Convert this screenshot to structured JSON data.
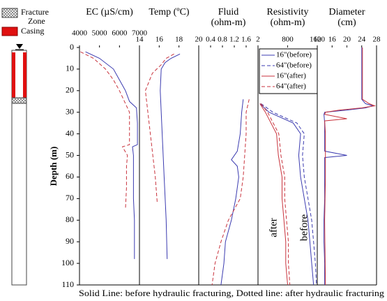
{
  "well_legend": {
    "fracture_zone": [
      "Fracture",
      "Zone"
    ],
    "casing": "Casing"
  },
  "depth_axis": {
    "label": "Depth (m)",
    "ylim": [
      0,
      110
    ],
    "yticks": [
      0,
      10,
      20,
      30,
      40,
      50,
      60,
      70,
      80,
      90,
      100,
      110
    ]
  },
  "footer": "Solid Line: before hydraulic fracturing, Dotted line: after hydraulic fracturing",
  "annotations": [
    "after",
    "before"
  ],
  "chart_data": [
    {
      "type": "line",
      "title": [
        "EC (µS/cm)"
      ],
      "xlim": [
        4000,
        7000
      ],
      "xticks": [
        4000,
        5000,
        6000,
        7000
      ],
      "series": [
        {
          "color": "#3b3bb0",
          "dash": false,
          "depth": [
            2,
            5,
            10,
            15,
            20,
            25,
            28,
            35,
            45,
            46,
            50,
            60,
            70,
            80,
            90,
            98
          ],
          "values": [
            4300,
            5000,
            5700,
            6000,
            6300,
            6500,
            6850,
            6900,
            6900,
            6650,
            6700,
            6700,
            6700,
            6750,
            6750,
            6750
          ]
        },
        {
          "color": "#c8323c",
          "dash": true,
          "depth": [
            2,
            5,
            10,
            15,
            20,
            25,
            30,
            45,
            46,
            50,
            55,
            65,
            75
          ],
          "values": [
            4050,
            4700,
            5300,
            5700,
            6000,
            6250,
            6500,
            6500,
            6150,
            6400,
            6350,
            6350,
            6300
          ]
        }
      ]
    },
    {
      "type": "line",
      "title": [
        "Temp (ºC)"
      ],
      "xlim": [
        14,
        20
      ],
      "xticks": [
        14,
        16,
        18,
        20
      ],
      "series": [
        {
          "color": "#3b3bb0",
          "dash": false,
          "depth": [
            3,
            5,
            7,
            10,
            20,
            40,
            60,
            80,
            98
          ],
          "values": [
            18.1,
            17.2,
            16.6,
            16.2,
            16.1,
            16.3,
            16.5,
            16.7,
            16.8
          ]
        },
        {
          "color": "#c8323c",
          "dash": true,
          "depth": [
            3,
            5,
            8,
            12,
            20,
            40,
            60,
            72
          ],
          "values": [
            17.5,
            16.7,
            16.2,
            15.3,
            14.6,
            15.1,
            15.6,
            15.8
          ]
        }
      ]
    },
    {
      "type": "line",
      "title": [
        "Fluid",
        "(ohm-m)"
      ],
      "xlim": [
        0,
        2
      ],
      "xticks": [
        0.4,
        0.8,
        1.2,
        1.6,
        2
      ],
      "series": [
        {
          "color": "#3b3bb0",
          "dash": false,
          "depth": [
            24,
            30,
            40,
            48,
            52,
            55,
            60,
            70,
            80,
            90,
            100,
            110
          ],
          "values": [
            1.5,
            1.45,
            1.4,
            1.3,
            1.1,
            1.3,
            1.35,
            1.25,
            1.1,
            0.9,
            0.85,
            0.75
          ]
        },
        {
          "color": "#c8323c",
          "dash": true,
          "depth": [
            24,
            30,
            40,
            50,
            60,
            70,
            80,
            90,
            100,
            110
          ],
          "values": [
            1.7,
            1.6,
            1.6,
            1.55,
            1.5,
            1.4,
            1.0,
            0.75,
            0.55,
            0.45
          ]
        }
      ]
    },
    {
      "type": "line",
      "title": [
        "Resistivity",
        "(ohm-m)"
      ],
      "xlim": [
        0,
        1600
      ],
      "xticks": [
        800,
        1600
      ],
      "legend": "upper right",
      "series": [
        {
          "name": "16\"(before)",
          "color": "#3b3bb0",
          "dash": false,
          "depth": [
            26,
            30,
            35,
            40,
            50,
            60,
            70,
            80,
            90,
            100,
            110
          ],
          "values": [
            50,
            300,
            950,
            1150,
            1100,
            1150,
            1250,
            1350,
            1400,
            1450,
            1500
          ]
        },
        {
          "name": "64\"(before)",
          "color": "#3b3bb0",
          "dash": true,
          "depth": [
            26,
            30,
            35,
            40,
            50,
            60,
            70,
            80,
            90,
            100,
            110
          ],
          "values": [
            80,
            400,
            1050,
            1250,
            1200,
            1250,
            1350,
            1450,
            1500,
            1550,
            1580
          ]
        },
        {
          "name": "16\"(after)",
          "color": "#c8323c",
          "dash": false,
          "depth": [
            26,
            30,
            40,
            50,
            60,
            70,
            80,
            90,
            100,
            110
          ],
          "values": [
            50,
            200,
            500,
            550,
            650,
            650,
            700,
            750,
            750,
            800
          ]
        },
        {
          "name": "64\"(after)",
          "color": "#c8323c",
          "dash": true,
          "depth": [
            26,
            30,
            40,
            50,
            60,
            70,
            80,
            90,
            100,
            110
          ],
          "values": [
            80,
            260,
            560,
            620,
            720,
            720,
            770,
            820,
            820,
            860
          ]
        }
      ]
    },
    {
      "type": "line",
      "title": [
        "Diameter",
        "(cm)"
      ],
      "xlim": [
        12,
        28
      ],
      "xticks": [
        12,
        16,
        20,
        24,
        28
      ],
      "series": [
        {
          "color": "#3b3bb0",
          "dash": false,
          "depth": [
            0,
            5,
            10,
            15,
            20,
            24,
            26,
            27,
            28,
            29,
            30,
            31,
            35,
            40,
            48,
            50,
            51,
            60,
            70,
            80,
            90,
            100,
            110
          ],
          "values": [
            24,
            24,
            24,
            24,
            24,
            24,
            25,
            27,
            25,
            20,
            14,
            13.8,
            14,
            14,
            14,
            20,
            14,
            14,
            14,
            13.8,
            13.8,
            14,
            14
          ]
        },
        {
          "color": "#c8323c",
          "dash": false,
          "depth": [
            0,
            10,
            20,
            24,
            26,
            27,
            28,
            29,
            30,
            31,
            33,
            34,
            40,
            50,
            60,
            80,
            110
          ],
          "values": [
            24.2,
            24.2,
            24.2,
            24.2,
            26,
            27.5,
            24,
            18,
            14.2,
            14,
            20,
            14,
            14.2,
            14.2,
            14.2,
            14,
            14.2
          ]
        }
      ]
    }
  ]
}
